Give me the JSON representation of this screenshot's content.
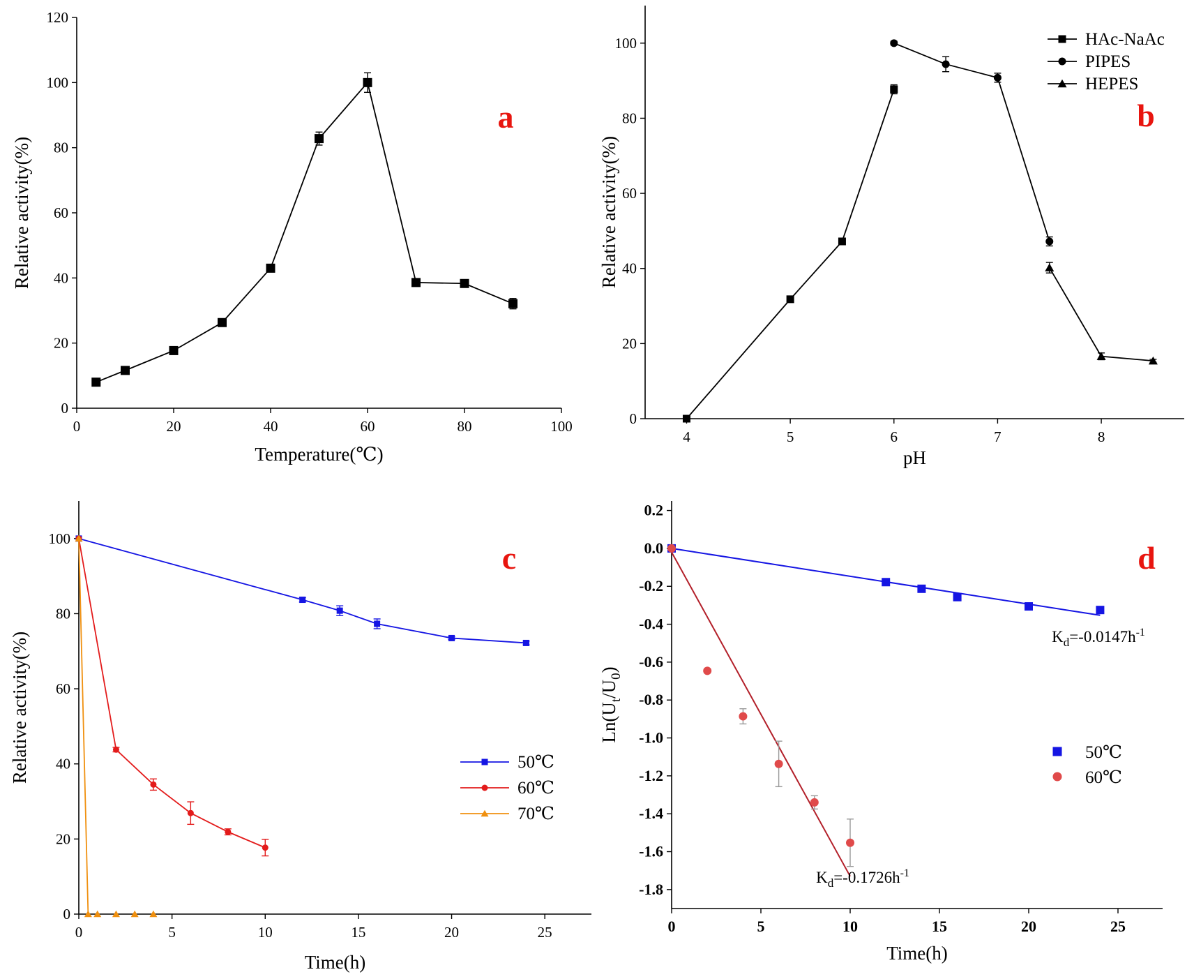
{
  "chart_data": [
    {
      "id": "a",
      "type": "line",
      "panel_label": "a",
      "xlabel": "Temperature(℃)",
      "ylabel": "Relative activity(%)",
      "xlim": [
        0,
        100
      ],
      "ylim": [
        0,
        120
      ],
      "xticks": [
        0,
        20,
        40,
        60,
        80,
        100
      ],
      "yticks": [
        0,
        20,
        40,
        60,
        80,
        100,
        120
      ],
      "series": [
        {
          "name": "",
          "color": "#000000",
          "marker": "square",
          "x": [
            4,
            10,
            20,
            30,
            40,
            50,
            60,
            70,
            80,
            90
          ],
          "y": [
            8,
            11.6,
            17.7,
            26.3,
            43,
            82.8,
            100,
            38.6,
            38.3,
            32.1
          ],
          "err": [
            0.5,
            0.5,
            0.5,
            0.6,
            0.5,
            2,
            3,
            0.5,
            0.5,
            1.6
          ]
        }
      ]
    },
    {
      "id": "b",
      "type": "line",
      "panel_label": "b",
      "xlabel": "pH",
      "ylabel": "Relative activity(%)",
      "xlim": [
        3.6,
        8.8
      ],
      "ylim": [
        0,
        110
      ],
      "xticks": [
        4,
        5,
        6,
        7,
        8
      ],
      "yticks": [
        0,
        20,
        40,
        60,
        80,
        100
      ],
      "legend_position": "top-right",
      "series": [
        {
          "name": "HAc-NaAc",
          "color": "#000000",
          "marker": "square",
          "x": [
            4,
            5,
            5.5,
            6
          ],
          "y": [
            0,
            31.8,
            47.2,
            87.7
          ],
          "err": [
            0,
            0.6,
            0.5,
            1.2
          ]
        },
        {
          "name": "PIPES",
          "color": "#000000",
          "marker": "circle",
          "x": [
            6,
            6.5,
            7,
            7.5
          ],
          "y": [
            100,
            94.4,
            90.8,
            47.2
          ],
          "err": [
            0.5,
            2,
            1.2,
            1.2
          ]
        },
        {
          "name": "HEPES",
          "color": "#000000",
          "marker": "triangle",
          "x": [
            7.5,
            8,
            8.5
          ],
          "y": [
            40.2,
            16.6,
            15.4
          ],
          "err": [
            1.4,
            0.9,
            0.4
          ]
        }
      ]
    },
    {
      "id": "c",
      "type": "line",
      "panel_label": "c",
      "xlabel": "Time(h)",
      "ylabel": "Relative activity(%)",
      "xlim": [
        0,
        27.5
      ],
      "ylim": [
        0,
        110
      ],
      "xticks": [
        0,
        5,
        10,
        15,
        20,
        25
      ],
      "yticks": [
        0,
        20,
        40,
        60,
        80,
        100
      ],
      "legend_position": "center-right",
      "series": [
        {
          "name": "50℃",
          "color": "#1515e3",
          "marker": "square",
          "x": [
            0,
            12,
            14,
            16,
            20,
            24
          ],
          "y": [
            100,
            83.7,
            80.8,
            77.3,
            73.5,
            72.2
          ],
          "err": [
            0,
            0.6,
            1.3,
            1.3,
            0.4,
            0.5
          ]
        },
        {
          "name": "60℃",
          "color": "#e31b1b",
          "marker": "circle",
          "x": [
            0,
            2,
            4,
            6,
            8,
            10
          ],
          "y": [
            100,
            43.8,
            34.5,
            26.9,
            21.9,
            17.7
          ],
          "err": [
            0,
            0.6,
            1.5,
            3,
            0.8,
            2.2
          ]
        },
        {
          "name": "70℃",
          "color": "#f0900f",
          "marker": "triangle",
          "x": [
            0,
            0.5,
            1,
            2,
            3,
            4
          ],
          "y": [
            100,
            0,
            0,
            0,
            0,
            0
          ],
          "err": [
            0,
            0,
            0,
            0,
            0,
            0
          ],
          "line_points": 2
        }
      ]
    },
    {
      "id": "d",
      "type": "scatter",
      "panel_label": "d",
      "xlabel": "Time(h)",
      "ylabel": "Ln(U",
      "ylabel_sub1": "t",
      "ylabel_mid": "/U",
      "ylabel_sub2": "0",
      "ylabel_end": ")",
      "xlim": [
        0,
        27.5
      ],
      "ylim": [
        -1.9,
        0.25
      ],
      "xticks": [
        0,
        5,
        10,
        15,
        20,
        25
      ],
      "yticks": [
        0.2,
        0.0,
        -0.2,
        -0.4,
        -0.6,
        -0.8,
        -1.0,
        -1.2,
        -1.4,
        -1.6,
        -1.8
      ],
      "ytick_labels": [
        "0.2",
        "0.0",
        "-0.2",
        "-0.4",
        "-0.6",
        "-0.8",
        "-1.0",
        "-1.2",
        "-1.4",
        "-1.6",
        "-1.8"
      ],
      "legend_position": "center-right",
      "series": [
        {
          "name": "50℃",
          "color": "#1515e3",
          "marker": "square",
          "x": [
            0,
            12,
            14,
            16,
            20,
            24
          ],
          "y": [
            0,
            -0.178,
            -0.213,
            -0.257,
            -0.306,
            -0.325
          ],
          "err": [
            0,
            0.007,
            0.016,
            0.017,
            0.005,
            0.007
          ],
          "fit": {
            "x0": 0,
            "y0": 0,
            "x1": 24,
            "y1": -0.353
          }
        },
        {
          "name": "60℃",
          "color": "#e04a4a",
          "marker": "circle",
          "x": [
            0,
            2,
            4,
            6,
            8,
            10
          ],
          "y": [
            0,
            -0.646,
            -0.886,
            -1.137,
            -1.34,
            -1.553
          ],
          "err": [
            0,
            0.01,
            0.04,
            0.12,
            0.035,
            0.125
          ],
          "fit": {
            "x0": 0,
            "y0": -0.02,
            "x1": 10,
            "y1": -1.73
          },
          "fit_color": "#b3202a"
        }
      ],
      "annotations": [
        {
          "base": "K",
          "sub": "d",
          "value": "=-0.0147h",
          "sup": "-1"
        },
        {
          "base": "K",
          "sub": "d",
          "value": "=-0.1726h",
          "sup": "-1"
        }
      ]
    }
  ]
}
